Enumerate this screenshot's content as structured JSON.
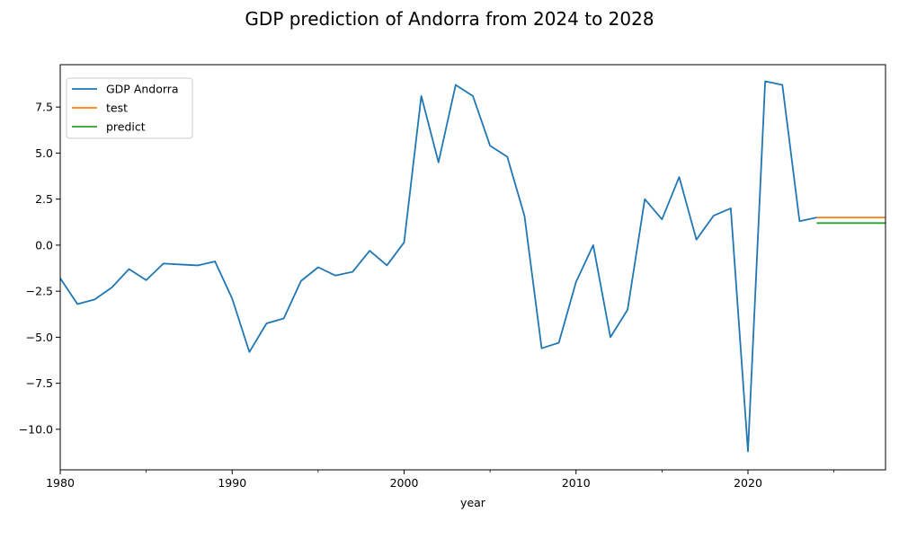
{
  "chart_data": {
    "type": "line",
    "title": "GDP prediction of Andorra from 2024 to 2028",
    "xlabel": "year",
    "ylabel": "",
    "xlim": [
      1980,
      2028
    ],
    "ylim": [
      -12.2,
      9.8
    ],
    "x_ticks": [
      1980,
      1990,
      2000,
      2010,
      2020
    ],
    "x_tick_labels": [
      "1980",
      "1990",
      "2000",
      "2010",
      "2020"
    ],
    "x_minor_ticks": [
      1985,
      1995,
      2005,
      2015,
      2025
    ],
    "y_ticks": [
      7.5,
      5.0,
      2.5,
      0.0,
      -2.5,
      -5.0,
      -7.5,
      -10.0
    ],
    "y_tick_labels": [
      "7.5",
      "5.0",
      "2.5",
      "0.0",
      "−2.5",
      "−5.0",
      "−7.5",
      "−10.0"
    ],
    "grid": false,
    "legend_position": "upper-left",
    "series": [
      {
        "name": "GDP Andorra",
        "color": "#1f77b4",
        "x": [
          1980,
          1981,
          1982,
          1983,
          1984,
          1985,
          1986,
          1987,
          1988,
          1989,
          1990,
          1991,
          1992,
          1993,
          1994,
          1995,
          1996,
          1997,
          1998,
          1999,
          2000,
          2001,
          2002,
          2003,
          2004,
          2005,
          2006,
          2007,
          2008,
          2009,
          2010,
          2011,
          2012,
          2013,
          2014,
          2015,
          2016,
          2017,
          2018,
          2019,
          2020,
          2021,
          2022,
          2023,
          2024
        ],
        "values": [
          -1.8,
          -3.2,
          -2.95,
          -2.3,
          -1.3,
          -1.9,
          -1.0,
          -1.05,
          -1.1,
          -0.88,
          -2.9,
          -5.8,
          -4.25,
          -3.98,
          -1.95,
          -1.2,
          -1.65,
          -1.45,
          -0.3,
          -1.1,
          0.15,
          8.1,
          4.5,
          8.7,
          8.1,
          5.4,
          4.8,
          1.6,
          -5.6,
          -5.3,
          -2.0,
          0.0,
          -5.0,
          -3.5,
          2.5,
          1.4,
          3.7,
          0.3,
          1.6,
          2.0,
          -11.2,
          8.9,
          8.7,
          1.3,
          1.5
        ]
      },
      {
        "name": "test",
        "color": "#ff7f0e",
        "x": [
          2024,
          2028
        ],
        "values": [
          1.5,
          1.5
        ]
      },
      {
        "name": "predict",
        "color": "#2ca02c",
        "x": [
          2024,
          2028
        ],
        "values": [
          1.2,
          1.2
        ]
      }
    ]
  }
}
